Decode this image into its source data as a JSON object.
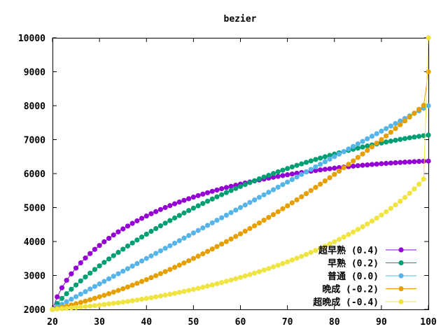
{
  "chart_data": {
    "type": "line",
    "title": "bezier",
    "xlabel": "",
    "ylabel": "",
    "xlim": [
      20,
      100
    ],
    "ylim": [
      2000,
      10000
    ],
    "x_ticks": [
      "20",
      "30",
      "40",
      "50",
      "60",
      "70",
      "80",
      "90",
      "100"
    ],
    "y_ticks": [
      "2000",
      "3000",
      "4000",
      "5000",
      "6000",
      "7000",
      "8000",
      "9000",
      "10000"
    ],
    "grid": false,
    "legend_position": "bottom-right",
    "x": [
      20,
      21,
      22,
      23,
      24,
      25,
      26,
      27,
      28,
      29,
      30,
      31,
      32,
      33,
      34,
      35,
      36,
      37,
      38,
      39,
      40,
      41,
      42,
      43,
      44,
      45,
      46,
      47,
      48,
      49,
      50,
      51,
      52,
      53,
      54,
      55,
      56,
      57,
      58,
      59,
      60,
      61,
      62,
      63,
      64,
      65,
      66,
      67,
      68,
      69,
      70,
      71,
      72,
      73,
      74,
      75,
      76,
      77,
      78,
      79,
      80,
      81,
      82,
      83,
      84,
      85,
      86,
      87,
      88,
      89,
      90,
      91,
      92,
      93,
      94,
      95,
      96,
      97,
      98,
      99,
      100
    ],
    "series": [
      {
        "name": "超早熟 (0.4)",
        "color": "#9400d3",
        "values": [
          2000,
          2370,
          2637,
          2857,
          3047,
          3217,
          3371,
          3513,
          3645,
          3768,
          3883,
          3992,
          4094,
          4192,
          4284,
          4371,
          4455,
          4534,
          4610,
          4682,
          4751,
          4818,
          4881,
          4942,
          5000,
          5057,
          5111,
          5163,
          5213,
          5261,
          5308,
          5352,
          5396,
          5437,
          5478,
          5516,
          5554,
          5590,
          5625,
          5659,
          5692,
          5723,
          5754,
          5784,
          5812,
          5840,
          5867,
          5893,
          5918,
          5942,
          5966,
          5988,
          6010,
          6031,
          6052,
          6071,
          6090,
          6109,
          6126,
          6143,
          6160,
          6175,
          6190,
          6205,
          6219,
          6232,
          6245,
          6257,
          6269,
          6280,
          6291,
          6301,
          6311,
          6320,
          6328,
          6337,
          6344,
          6352,
          6358,
          6365,
          6370
        ]
      },
      {
        "name": "早熟 (0.2)",
        "color": "#009e73",
        "values": [
          2000,
          2174,
          2324,
          2463,
          2594,
          2719,
          2839,
          2955,
          3067,
          3176,
          3282,
          3385,
          3486,
          3584,
          3680,
          3774,
          3866,
          3956,
          4044,
          4131,
          4216,
          4299,
          4381,
          4461,
          4540,
          4617,
          4693,
          4767,
          4840,
          4912,
          4982,
          5051,
          5119,
          5186,
          5252,
          5316,
          5379,
          5441,
          5502,
          5562,
          5621,
          5678,
          5735,
          5790,
          5845,
          5898,
          5950,
          6002,
          6052,
          6101,
          6149,
          6196,
          6242,
          6287,
          6331,
          6374,
          6416,
          6457,
          6497,
          6536,
          6574,
          6612,
          6648,
          6683,
          6717,
          6750,
          6783,
          6814,
          6844,
          6874,
          6902,
          6930,
          6956,
          6982,
          7007,
          7031,
          7054,
          7076,
          7097,
          7117,
          7136
        ]
      },
      {
        "name": "普通 (0.0)",
        "color": "#56b4e9",
        "values": [
          2000,
          2075,
          2150,
          2225,
          2300,
          2375,
          2450,
          2525,
          2600,
          2675,
          2750,
          2825,
          2900,
          2975,
          3050,
          3125,
          3200,
          3275,
          3350,
          3425,
          3500,
          3575,
          3650,
          3725,
          3800,
          3875,
          3950,
          4025,
          4100,
          4175,
          4250,
          4325,
          4400,
          4475,
          4550,
          4625,
          4700,
          4775,
          4850,
          4925,
          5000,
          5075,
          5150,
          5225,
          5300,
          5375,
          5450,
          5525,
          5600,
          5675,
          5750,
          5825,
          5900,
          5975,
          6050,
          6125,
          6200,
          6275,
          6350,
          6425,
          6500,
          6575,
          6650,
          6725,
          6800,
          6875,
          6950,
          7025,
          7100,
          7175,
          7250,
          7325,
          7400,
          7475,
          7550,
          7625,
          7700,
          7775,
          7850,
          7925,
          8000
        ]
      },
      {
        "name": "晩成 (-0.2)",
        "color": "#e69f00",
        "values": [
          2000,
          2030,
          2062,
          2095,
          2130,
          2167,
          2205,
          2244,
          2285,
          2327,
          2371,
          2416,
          2462,
          2510,
          2559,
          2609,
          2660,
          2713,
          2767,
          2822,
          2878,
          2935,
          2994,
          3053,
          3114,
          3176,
          3239,
          3303,
          3368,
          3434,
          3501,
          3569,
          3638,
          3708,
          3779,
          3851,
          3924,
          3998,
          4073,
          4149,
          4226,
          4304,
          4383,
          4463,
          4544,
          4626,
          4709,
          4793,
          4878,
          4964,
          5051,
          5139,
          5228,
          5318,
          5409,
          5501,
          5594,
          5688,
          5783,
          5879,
          5976,
          6074,
          6173,
          6273,
          6374,
          6476,
          6579,
          6683,
          6788,
          6894,
          7001,
          7109,
          7218,
          7328,
          7439,
          7551,
          7664,
          7778,
          7893,
          8009,
          9000
        ]
      },
      {
        "name": "超晩成 (-0.4)",
        "color": "#f0e442",
        "values": [
          2000,
          2010,
          2021,
          2032,
          2044,
          2056,
          2069,
          2083,
          2097,
          2112,
          2128,
          2144,
          2161,
          2179,
          2197,
          2216,
          2236,
          2256,
          2277,
          2299,
          2322,
          2345,
          2369,
          2394,
          2420,
          2446,
          2473,
          2501,
          2530,
          2560,
          2590,
          2621,
          2653,
          2686,
          2720,
          2755,
          2791,
          2828,
          2865,
          2904,
          2944,
          2984,
          3026,
          3069,
          3113,
          3158,
          3204,
          3252,
          3300,
          3350,
          3401,
          3454,
          3508,
          3563,
          3620,
          3678,
          3738,
          3799,
          3862,
          3927,
          3993,
          4062,
          4132,
          4204,
          4279,
          4356,
          4435,
          4517,
          4602,
          4690,
          4781,
          4876,
          4975,
          5078,
          5186,
          5300,
          5421,
          5550,
          5688,
          5838,
          10000
        ]
      }
    ]
  }
}
